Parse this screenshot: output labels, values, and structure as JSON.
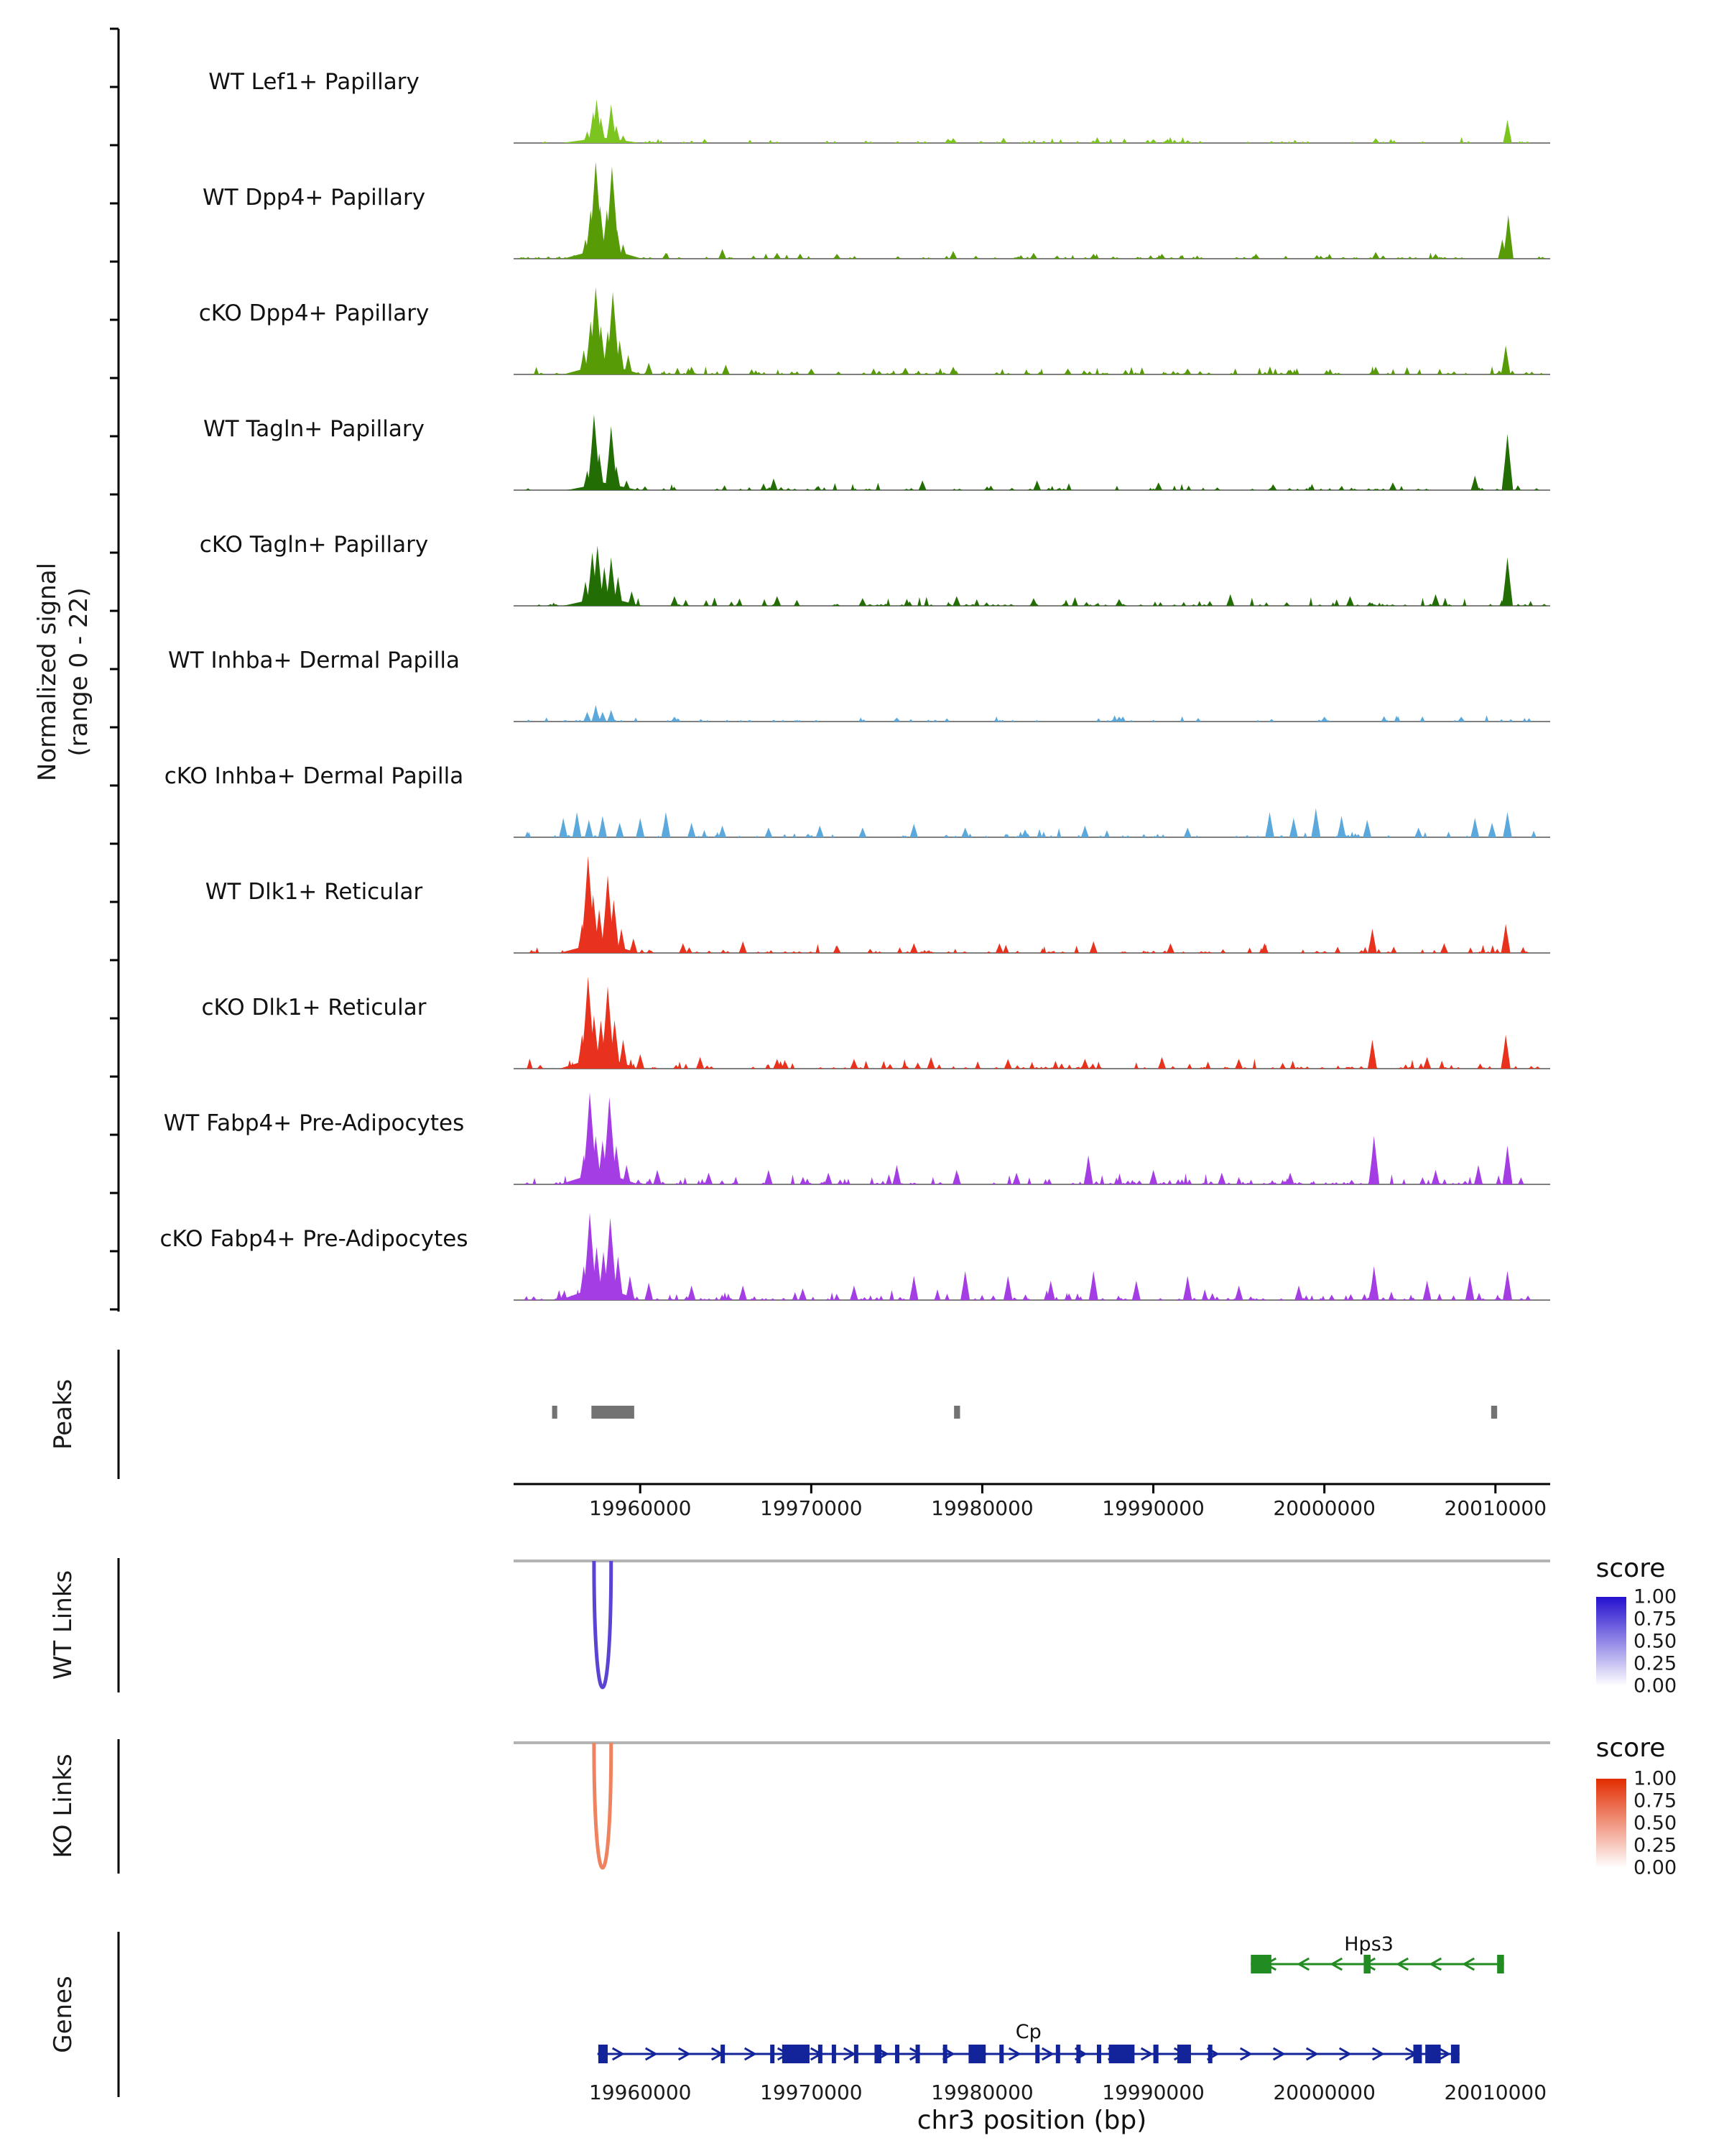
{
  "chart_data": {
    "type": "area",
    "xlabel": "chr3 position (bp)",
    "x_range": [
      19952600,
      20013200
    ],
    "x_ticks": [
      19960000,
      19970000,
      19980000,
      19990000,
      20000000,
      20010000
    ],
    "ylabel_line1": "Normalized signal",
    "ylabel_line2": "(range 0 - 22)",
    "sections": {
      "peaks": "Peaks",
      "wt_links": "WT Links",
      "ko_links": "KO Links",
      "genes": "Genes"
    },
    "tracks": [
      {
        "label": "WT Lef1+ Papillary",
        "color": "#7CC521",
        "peaks": [
          [
            19957700,
            0.06,
            55
          ],
          [
            19956900,
            0.12
          ],
          [
            19957250,
            0.32
          ],
          [
            19957450,
            0.45
          ],
          [
            19957700,
            0.26
          ],
          [
            19958300,
            0.4
          ],
          [
            19958600,
            0.18
          ],
          [
            19959000,
            0.08
          ],
          [
            19978300,
            0.05
          ],
          [
            19990000,
            0.04
          ],
          [
            20003000,
            0.05
          ],
          [
            20010700,
            0.24
          ]
        ],
        "noise": {
          "seed": 11,
          "count": 75,
          "max": 0.05
        }
      },
      {
        "label": "WT Dpp4+ Papillary",
        "color": "#579B07",
        "peaks": [
          [
            19957800,
            0.12,
            55
          ],
          [
            19956800,
            0.2
          ],
          [
            19957100,
            0.5
          ],
          [
            19957400,
            1.0
          ],
          [
            19957650,
            0.55
          ],
          [
            19958050,
            0.5
          ],
          [
            19958350,
            0.95
          ],
          [
            19958650,
            0.3
          ],
          [
            19959000,
            0.15
          ],
          [
            19961500,
            0.06
          ],
          [
            19964800,
            0.1
          ],
          [
            19968000,
            0.06
          ],
          [
            19971500,
            0.05
          ],
          [
            19978300,
            0.08
          ],
          [
            19983000,
            0.06
          ],
          [
            19986500,
            0.05
          ],
          [
            19990500,
            0.05
          ],
          [
            19996000,
            0.05
          ],
          [
            20003000,
            0.07
          ],
          [
            20006500,
            0.05
          ],
          [
            20010400,
            0.2
          ],
          [
            20010750,
            0.45
          ]
        ],
        "noise": {
          "seed": 22,
          "count": 90,
          "max": 0.05
        }
      },
      {
        "label": "cKO Dpp4+ Papillary",
        "color": "#579B07",
        "peaks": [
          [
            19957800,
            0.12,
            55
          ],
          [
            19956700,
            0.25
          ],
          [
            19957100,
            0.55
          ],
          [
            19957400,
            0.9
          ],
          [
            19957700,
            0.5
          ],
          [
            19958100,
            0.45
          ],
          [
            19958400,
            0.85
          ],
          [
            19958800,
            0.35
          ],
          [
            19959300,
            0.2
          ],
          [
            19960500,
            0.12
          ],
          [
            19963000,
            0.08
          ],
          [
            19965000,
            0.1
          ],
          [
            19970000,
            0.06
          ],
          [
            19975500,
            0.07
          ],
          [
            19978300,
            0.08
          ],
          [
            19985000,
            0.06
          ],
          [
            19992000,
            0.06
          ],
          [
            19998000,
            0.05
          ],
          [
            20003000,
            0.08
          ],
          [
            20010600,
            0.3
          ]
        ],
        "noise": {
          "seed": 33,
          "count": 120,
          "max": 0.07
        }
      },
      {
        "label": "WT Tagln+ Papillary",
        "color": "#226E04",
        "peaks": [
          [
            19957800,
            0.08,
            50
          ],
          [
            19956900,
            0.2
          ],
          [
            19957300,
            0.78
          ],
          [
            19957600,
            0.38
          ],
          [
            19958300,
            0.66
          ],
          [
            19958600,
            0.25
          ],
          [
            19959200,
            0.1
          ],
          [
            19967800,
            0.12
          ],
          [
            19976500,
            0.1
          ],
          [
            19983200,
            0.1
          ],
          [
            19990300,
            0.08
          ],
          [
            19997000,
            0.06
          ],
          [
            20004000,
            0.08
          ],
          [
            20008800,
            0.15
          ],
          [
            20010700,
            0.58
          ]
        ],
        "noise": {
          "seed": 44,
          "count": 80,
          "max": 0.06
        }
      },
      {
        "label": "cKO Tagln+ Papillary",
        "color": "#226E04",
        "peaks": [
          [
            19957800,
            0.1,
            55
          ],
          [
            19956800,
            0.25
          ],
          [
            19957200,
            0.55
          ],
          [
            19957500,
            0.62
          ],
          [
            19957900,
            0.4
          ],
          [
            19958300,
            0.5
          ],
          [
            19958700,
            0.3
          ],
          [
            19959500,
            0.15
          ],
          [
            19962000,
            0.1
          ],
          [
            19968000,
            0.1
          ],
          [
            19973000,
            0.08
          ],
          [
            19978500,
            0.1
          ],
          [
            19983000,
            0.08
          ],
          [
            19988000,
            0.07
          ],
          [
            19994500,
            0.12
          ],
          [
            20001500,
            0.1
          ],
          [
            20006500,
            0.12
          ],
          [
            20010700,
            0.5
          ]
        ],
        "noise": {
          "seed": 55,
          "count": 110,
          "max": 0.08
        }
      },
      {
        "label": "WT Inhba+ Dermal Papilla",
        "color": "#5BA8DC",
        "peaks": [
          [
            19956900,
            0.1
          ],
          [
            19957400,
            0.17
          ],
          [
            19957800,
            0.1
          ],
          [
            19958300,
            0.12
          ],
          [
            19962000,
            0.05
          ],
          [
            19975000,
            0.04
          ],
          [
            19988000,
            0.05
          ],
          [
            20000000,
            0.05
          ],
          [
            20008000,
            0.05
          ]
        ],
        "noise": {
          "seed": 66,
          "count": 60,
          "max": 0.05
        }
      },
      {
        "label": "cKO Inhba+ Dermal Papilla",
        "color": "#5BA8DC",
        "peaks": [
          [
            19955500,
            0.2
          ],
          [
            19956300,
            0.26
          ],
          [
            19957000,
            0.18
          ],
          [
            19957800,
            0.22
          ],
          [
            19958800,
            0.15
          ],
          [
            19960000,
            0.2
          ],
          [
            19961500,
            0.26
          ],
          [
            19963000,
            0.15
          ],
          [
            19964800,
            0.12
          ],
          [
            19967500,
            0.1
          ],
          [
            19970500,
            0.12
          ],
          [
            19973000,
            0.1
          ],
          [
            19976000,
            0.14
          ],
          [
            19979000,
            0.1
          ],
          [
            19982500,
            0.08
          ],
          [
            19986000,
            0.12
          ],
          [
            19992000,
            0.1
          ],
          [
            19996800,
            0.26
          ],
          [
            19998200,
            0.2
          ],
          [
            19999500,
            0.3
          ],
          [
            20001000,
            0.22
          ],
          [
            20002500,
            0.18
          ],
          [
            20005500,
            0.1
          ],
          [
            20008800,
            0.2
          ],
          [
            20009800,
            0.15
          ],
          [
            20010700,
            0.26
          ]
        ],
        "noise": {
          "seed": 77,
          "count": 70,
          "max": 0.08
        }
      },
      {
        "label": "WT Dlk1+ Reticular",
        "color": "#E8321E",
        "peaks": [
          [
            19957600,
            0.12,
            55
          ],
          [
            19956600,
            0.3
          ],
          [
            19956950,
            1.0
          ],
          [
            19957250,
            0.6
          ],
          [
            19957600,
            0.45
          ],
          [
            19958100,
            0.8
          ],
          [
            19958450,
            0.55
          ],
          [
            19958900,
            0.25
          ],
          [
            19959600,
            0.15
          ],
          [
            19962500,
            0.1
          ],
          [
            19966000,
            0.12
          ],
          [
            19971500,
            0.08
          ],
          [
            19976000,
            0.1
          ],
          [
            19981000,
            0.1
          ],
          [
            19986500,
            0.12
          ],
          [
            19991000,
            0.1
          ],
          [
            19996500,
            0.1
          ],
          [
            20002800,
            0.25
          ],
          [
            20007000,
            0.1
          ],
          [
            20010600,
            0.3
          ]
        ],
        "noise": {
          "seed": 88,
          "count": 100,
          "max": 0.08
        }
      },
      {
        "label": "cKO Dlk1+ Reticular",
        "color": "#E8321E",
        "peaks": [
          [
            19957600,
            0.14,
            55
          ],
          [
            19956600,
            0.35
          ],
          [
            19956950,
            0.95
          ],
          [
            19957300,
            0.55
          ],
          [
            19957700,
            0.5
          ],
          [
            19958100,
            0.85
          ],
          [
            19958500,
            0.5
          ],
          [
            19959000,
            0.3
          ],
          [
            19960000,
            0.15
          ],
          [
            19963500,
            0.12
          ],
          [
            19968000,
            0.1
          ],
          [
            19972500,
            0.1
          ],
          [
            19977000,
            0.12
          ],
          [
            19981500,
            0.1
          ],
          [
            19986000,
            0.1
          ],
          [
            19990500,
            0.12
          ],
          [
            19995000,
            0.1
          ],
          [
            20002800,
            0.3
          ],
          [
            20006000,
            0.12
          ],
          [
            20010600,
            0.35
          ]
        ],
        "noise": {
          "seed": 99,
          "count": 130,
          "max": 0.09
        }
      },
      {
        "label": "WT Fabp4+ Pre-Adipocytes",
        "color": "#A43DE3",
        "peaks": [
          [
            19957600,
            0.14,
            55
          ],
          [
            19956700,
            0.3
          ],
          [
            19957050,
            0.95
          ],
          [
            19957400,
            0.5
          ],
          [
            19957800,
            0.45
          ],
          [
            19958200,
            0.9
          ],
          [
            19958600,
            0.4
          ],
          [
            19959200,
            0.2
          ],
          [
            19961000,
            0.15
          ],
          [
            19964000,
            0.12
          ],
          [
            19967500,
            0.15
          ],
          [
            19971000,
            0.12
          ],
          [
            19975000,
            0.2
          ],
          [
            19978500,
            0.15
          ],
          [
            19982000,
            0.12
          ],
          [
            19986200,
            0.3
          ],
          [
            19990000,
            0.15
          ],
          [
            19994000,
            0.12
          ],
          [
            19998000,
            0.12
          ],
          [
            20002900,
            0.5
          ],
          [
            20006500,
            0.15
          ],
          [
            20009000,
            0.2
          ],
          [
            20010700,
            0.4
          ]
        ],
        "noise": {
          "seed": 110,
          "count": 130,
          "max": 0.1
        }
      },
      {
        "label": "cKO Fabp4+ Pre-Adipocytes",
        "color": "#A43DE3",
        "peaks": [
          [
            19957600,
            0.16,
            55
          ],
          [
            19956700,
            0.35
          ],
          [
            19957050,
            0.9
          ],
          [
            19957450,
            0.55
          ],
          [
            19957850,
            0.5
          ],
          [
            19958250,
            0.85
          ],
          [
            19958700,
            0.45
          ],
          [
            19959400,
            0.25
          ],
          [
            19960500,
            0.18
          ],
          [
            19963000,
            0.15
          ],
          [
            19966000,
            0.15
          ],
          [
            19969500,
            0.12
          ],
          [
            19972500,
            0.15
          ],
          [
            19976000,
            0.25
          ],
          [
            19979000,
            0.3
          ],
          [
            19981500,
            0.25
          ],
          [
            19984000,
            0.2
          ],
          [
            19986500,
            0.3
          ],
          [
            19989000,
            0.2
          ],
          [
            19992000,
            0.25
          ],
          [
            19995000,
            0.15
          ],
          [
            19998500,
            0.15
          ],
          [
            20002900,
            0.35
          ],
          [
            20006000,
            0.2
          ],
          [
            20008500,
            0.25
          ],
          [
            20010700,
            0.3
          ]
        ],
        "noise": {
          "seed": 121,
          "count": 150,
          "max": 0.1
        }
      }
    ],
    "peaks": {
      "color": "#737373",
      "intervals": [
        [
          19954850,
          19955150
        ],
        [
          19957150,
          19959650
        ],
        [
          19978350,
          19978700
        ],
        [
          20009750,
          20010100
        ]
      ]
    },
    "links": {
      "wt": {
        "loop_bp": [
          19957300,
          19958300
        ],
        "loop_color": "#5C43D4",
        "legend_title": "score",
        "legend_ticks": [
          "1.00",
          "0.75",
          "0.50",
          "0.25",
          "0.00"
        ],
        "gradient_top": "#2410CE",
        "gradient_bottom": "#FFFFFF"
      },
      "ko": {
        "loop_bp": [
          19957300,
          19958300
        ],
        "loop_color": "#F0835F",
        "legend_title": "score",
        "legend_ticks": [
          "1.00",
          "0.75",
          "0.50",
          "0.25",
          "0.00"
        ],
        "gradient_top": "#E22C00",
        "gradient_bottom": "#FFFFFF"
      }
    },
    "genes": [
      {
        "name": "Hps3",
        "color": "#228B22",
        "strand": "-",
        "start": 19995700,
        "end": 20010500,
        "label_bp": 20002600,
        "exons": [
          [
            19995700,
            19996900
          ],
          [
            20002300,
            20002700
          ],
          [
            20010100,
            20010500
          ]
        ]
      },
      {
        "name": "Cp",
        "color": "#13249B",
        "strand": "+",
        "start": 19957500,
        "end": 20007900,
        "label_bp": 19982700,
        "exons": [
          [
            19957550,
            19958100
          ],
          [
            19964700,
            19964950
          ],
          [
            19967600,
            19967850
          ],
          [
            19968300,
            19969900
          ],
          [
            19970400,
            19970650
          ],
          [
            19971200,
            19971450
          ],
          [
            19972500,
            19972750
          ],
          [
            19973700,
            19974100
          ],
          [
            19974900,
            19975150
          ],
          [
            19976100,
            19976350
          ],
          [
            19977700,
            19977950
          ],
          [
            19979200,
            19980200
          ],
          [
            19981000,
            19981250
          ],
          [
            19983100,
            19983350
          ],
          [
            19984300,
            19984550
          ],
          [
            19985500,
            19985750
          ],
          [
            19986700,
            19986950
          ],
          [
            19987400,
            19988900
          ],
          [
            19990000,
            19990300
          ],
          [
            19991400,
            19992200
          ],
          [
            19993200,
            19993450
          ],
          [
            20005200,
            20005700
          ],
          [
            20005900,
            20006800
          ],
          [
            20007400,
            20007900
          ]
        ]
      }
    ]
  }
}
